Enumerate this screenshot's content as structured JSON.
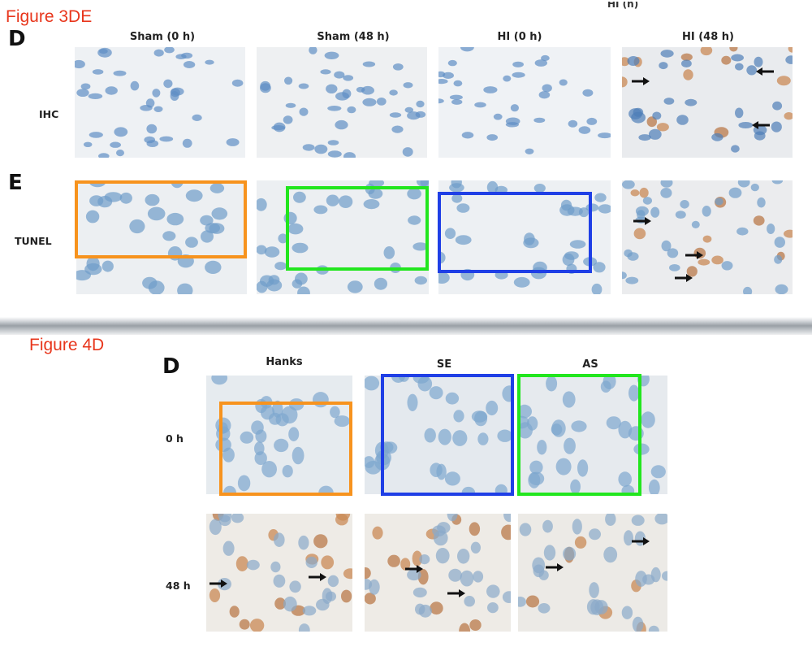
{
  "figure_3de": {
    "title": "Figure 3DE",
    "top_cropped_text": "HI (h)",
    "panel_d": {
      "letter": "D",
      "columns": [
        "Sham (0 h)",
        "Sham (48 h)",
        "HI (0 h)",
        "HI (48 h)"
      ],
      "row_label": "IHC"
    },
    "panel_e": {
      "letter": "E",
      "row_label": "TUNEL"
    },
    "highlight_colors": {
      "orange": "#f7931e",
      "green": "#22e61e",
      "blue": "#1f3fe6"
    }
  },
  "figure_4d": {
    "title": "Figure 4D",
    "letter": "D",
    "columns": [
      "Hanks",
      "SE",
      "AS"
    ],
    "rows": [
      "0 h",
      "48 h"
    ],
    "highlight_colors": {
      "orange": "#f7931e",
      "blue": "#1f3fe6",
      "green": "#22e61e"
    }
  }
}
